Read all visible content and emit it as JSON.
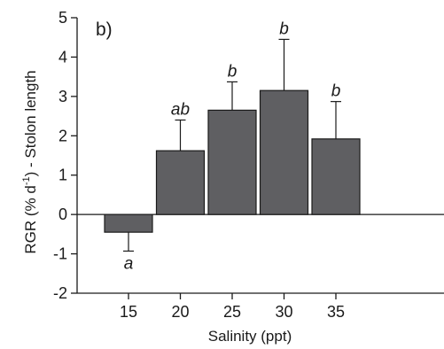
{
  "chart_data": {
    "type": "bar",
    "panel_label": "b)",
    "xlabel": "Salinity (ppt)",
    "ylabel": {
      "prefix": "RGR (% d",
      "superscript": "-1",
      "suffix": ") - Stolon length"
    },
    "categories": [
      "15",
      "20",
      "25",
      "30",
      "35"
    ],
    "values": [
      -0.45,
      1.62,
      2.65,
      3.15,
      1.92
    ],
    "errors": [
      0.48,
      0.78,
      0.72,
      1.3,
      0.95
    ],
    "significance": [
      "a",
      "ab",
      "b",
      "b",
      "b"
    ],
    "ylim": [
      -2,
      5
    ],
    "yticks": [
      -2,
      -1,
      0,
      1,
      2,
      3,
      4,
      5
    ],
    "bar_color": "#5f5f62",
    "grid": false,
    "legend": "none"
  }
}
